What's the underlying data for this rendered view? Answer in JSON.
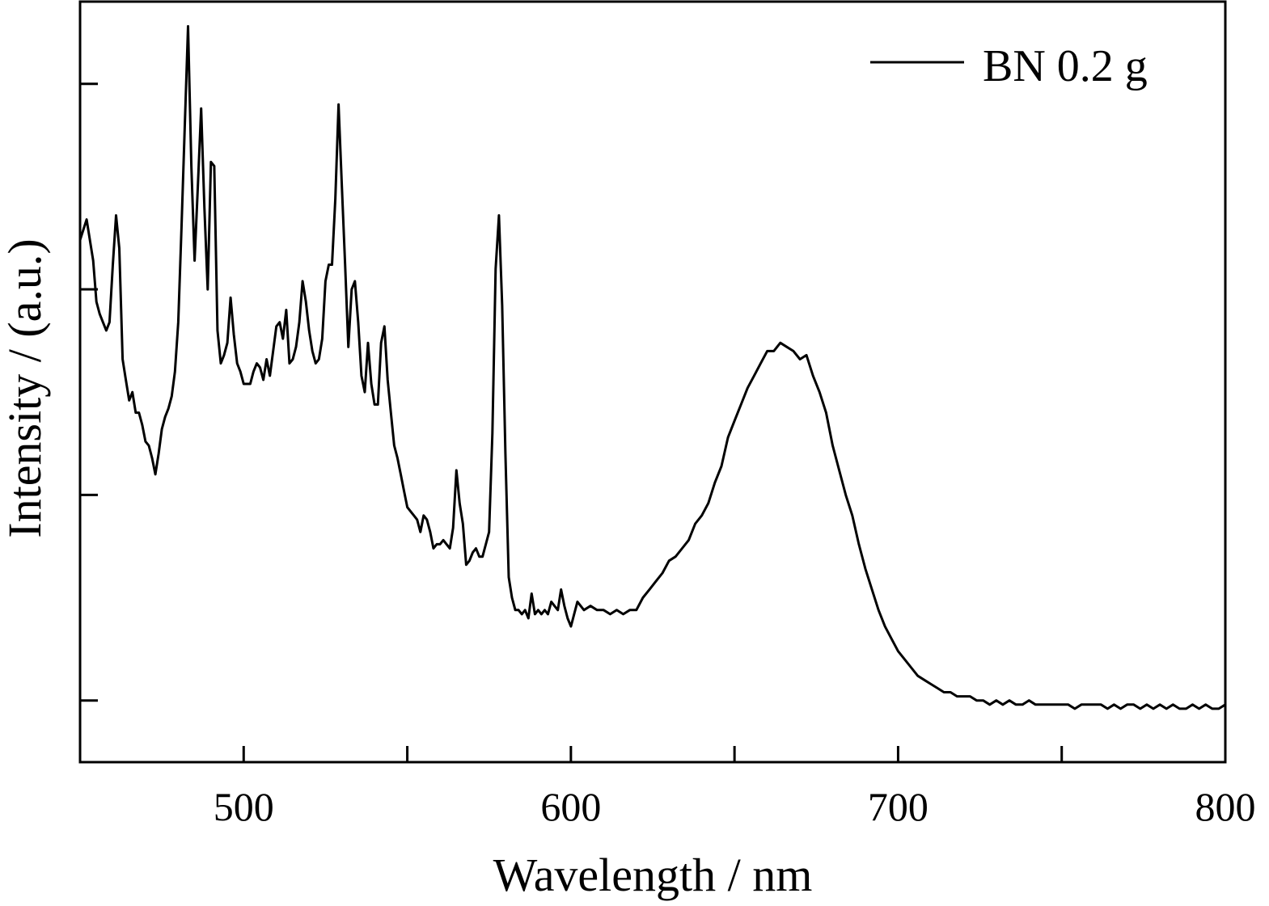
{
  "chart_data": {
    "type": "line",
    "title": "",
    "xlabel": "Wavelength / nm",
    "ylabel": "Intensity / (a.u.)",
    "xlim": [
      450,
      800
    ],
    "ylim": [
      -0.15,
      1.7
    ],
    "xticks": [
      500,
      600,
      700,
      800
    ],
    "xminor": [
      550,
      650,
      750
    ],
    "yticks_unlabeled": [
      0,
      0.5,
      1.0,
      1.5
    ],
    "legend_position": "top-right",
    "grid": false,
    "series": [
      {
        "name": "BN 0.2 g",
        "color": "#000000",
        "points": [
          [
            450,
            1.12
          ],
          [
            452,
            1.17
          ],
          [
            454,
            1.07
          ],
          [
            455,
            0.97
          ],
          [
            456,
            0.94
          ],
          [
            457,
            0.92
          ],
          [
            458,
            0.9
          ],
          [
            459,
            0.92
          ],
          [
            460,
            1.06
          ],
          [
            461,
            1.18
          ],
          [
            462,
            1.1
          ],
          [
            463,
            0.83
          ],
          [
            464,
            0.78
          ],
          [
            465,
            0.73
          ],
          [
            466,
            0.75
          ],
          [
            467,
            0.7
          ],
          [
            468,
            0.7
          ],
          [
            469,
            0.67
          ],
          [
            470,
            0.63
          ],
          [
            471,
            0.62
          ],
          [
            472,
            0.59
          ],
          [
            473,
            0.55
          ],
          [
            474,
            0.6
          ],
          [
            475,
            0.66
          ],
          [
            476,
            0.69
          ],
          [
            477,
            0.71
          ],
          [
            478,
            0.74
          ],
          [
            479,
            0.8
          ],
          [
            480,
            0.92
          ],
          [
            481,
            1.15
          ],
          [
            482,
            1.4
          ],
          [
            483,
            1.64
          ],
          [
            484,
            1.3
          ],
          [
            485,
            1.07
          ],
          [
            486,
            1.25
          ],
          [
            487,
            1.44
          ],
          [
            488,
            1.2
          ],
          [
            489,
            1.0
          ],
          [
            490,
            1.31
          ],
          [
            491,
            1.3
          ],
          [
            492,
            0.9
          ],
          [
            493,
            0.82
          ],
          [
            494,
            0.84
          ],
          [
            495,
            0.87
          ],
          [
            496,
            0.98
          ],
          [
            497,
            0.89
          ],
          [
            498,
            0.82
          ],
          [
            499,
            0.8
          ],
          [
            500,
            0.77
          ],
          [
            502,
            0.77
          ],
          [
            503,
            0.8
          ],
          [
            504,
            0.82
          ],
          [
            505,
            0.81
          ],
          [
            506,
            0.78
          ],
          [
            507,
            0.83
          ],
          [
            508,
            0.79
          ],
          [
            509,
            0.85
          ],
          [
            510,
            0.91
          ],
          [
            511,
            0.92
          ],
          [
            512,
            0.88
          ],
          [
            513,
            0.95
          ],
          [
            514,
            0.82
          ],
          [
            515,
            0.83
          ],
          [
            516,
            0.86
          ],
          [
            517,
            0.92
          ],
          [
            518,
            1.02
          ],
          [
            519,
            0.97
          ],
          [
            520,
            0.9
          ],
          [
            521,
            0.85
          ],
          [
            522,
            0.82
          ],
          [
            523,
            0.83
          ],
          [
            524,
            0.88
          ],
          [
            525,
            1.02
          ],
          [
            526,
            1.06
          ],
          [
            527,
            1.06
          ],
          [
            528,
            1.22
          ],
          [
            529,
            1.45
          ],
          [
            530,
            1.25
          ],
          [
            531,
            1.06
          ],
          [
            532,
            0.86
          ],
          [
            533,
            1.0
          ],
          [
            534,
            1.02
          ],
          [
            535,
            0.92
          ],
          [
            536,
            0.79
          ],
          [
            537,
            0.75
          ],
          [
            538,
            0.87
          ],
          [
            539,
            0.77
          ],
          [
            540,
            0.72
          ],
          [
            541,
            0.72
          ],
          [
            542,
            0.87
          ],
          [
            543,
            0.91
          ],
          [
            544,
            0.78
          ],
          [
            545,
            0.7
          ],
          [
            546,
            0.62
          ],
          [
            547,
            0.59
          ],
          [
            548,
            0.55
          ],
          [
            549,
            0.51
          ],
          [
            550,
            0.47
          ],
          [
            551,
            0.46
          ],
          [
            552,
            0.45
          ],
          [
            553,
            0.44
          ],
          [
            554,
            0.41
          ],
          [
            555,
            0.45
          ],
          [
            556,
            0.44
          ],
          [
            557,
            0.41
          ],
          [
            558,
            0.37
          ],
          [
            559,
            0.38
          ],
          [
            560,
            0.38
          ],
          [
            561,
            0.39
          ],
          [
            562,
            0.38
          ],
          [
            563,
            0.37
          ],
          [
            564,
            0.42
          ],
          [
            565,
            0.56
          ],
          [
            566,
            0.48
          ],
          [
            567,
            0.43
          ],
          [
            568,
            0.33
          ],
          [
            569,
            0.34
          ],
          [
            570,
            0.36
          ],
          [
            571,
            0.37
          ],
          [
            572,
            0.35
          ],
          [
            573,
            0.35
          ],
          [
            574,
            0.38
          ],
          [
            575,
            0.41
          ],
          [
            576,
            0.65
          ],
          [
            577,
            1.05
          ],
          [
            578,
            1.18
          ],
          [
            579,
            0.96
          ],
          [
            580,
            0.6
          ],
          [
            581,
            0.3
          ],
          [
            582,
            0.25
          ],
          [
            583,
            0.22
          ],
          [
            584,
            0.22
          ],
          [
            585,
            0.21
          ],
          [
            586,
            0.22
          ],
          [
            587,
            0.2
          ],
          [
            588,
            0.26
          ],
          [
            589,
            0.21
          ],
          [
            590,
            0.22
          ],
          [
            591,
            0.21
          ],
          [
            592,
            0.22
          ],
          [
            593,
            0.21
          ],
          [
            594,
            0.24
          ],
          [
            595,
            0.23
          ],
          [
            596,
            0.22
          ],
          [
            597,
            0.27
          ],
          [
            598,
            0.23
          ],
          [
            599,
            0.2
          ],
          [
            600,
            0.18
          ],
          [
            602,
            0.24
          ],
          [
            604,
            0.22
          ],
          [
            606,
            0.23
          ],
          [
            608,
            0.22
          ],
          [
            610,
            0.22
          ],
          [
            612,
            0.21
          ],
          [
            614,
            0.22
          ],
          [
            616,
            0.21
          ],
          [
            618,
            0.22
          ],
          [
            620,
            0.22
          ],
          [
            622,
            0.25
          ],
          [
            624,
            0.27
          ],
          [
            626,
            0.29
          ],
          [
            628,
            0.31
          ],
          [
            630,
            0.34
          ],
          [
            632,
            0.35
          ],
          [
            634,
            0.37
          ],
          [
            636,
            0.39
          ],
          [
            638,
            0.43
          ],
          [
            640,
            0.45
          ],
          [
            642,
            0.48
          ],
          [
            644,
            0.53
          ],
          [
            646,
            0.57
          ],
          [
            648,
            0.64
          ],
          [
            650,
            0.68
          ],
          [
            652,
            0.72
          ],
          [
            654,
            0.76
          ],
          [
            656,
            0.79
          ],
          [
            658,
            0.82
          ],
          [
            660,
            0.85
          ],
          [
            662,
            0.85
          ],
          [
            664,
            0.87
          ],
          [
            666,
            0.86
          ],
          [
            668,
            0.85
          ],
          [
            670,
            0.83
          ],
          [
            672,
            0.84
          ],
          [
            674,
            0.79
          ],
          [
            676,
            0.75
          ],
          [
            678,
            0.7
          ],
          [
            680,
            0.62
          ],
          [
            682,
            0.56
          ],
          [
            684,
            0.5
          ],
          [
            686,
            0.45
          ],
          [
            688,
            0.38
          ],
          [
            690,
            0.32
          ],
          [
            692,
            0.27
          ],
          [
            694,
            0.22
          ],
          [
            696,
            0.18
          ],
          [
            698,
            0.15
          ],
          [
            700,
            0.12
          ],
          [
            702,
            0.1
          ],
          [
            704,
            0.08
          ],
          [
            706,
            0.06
          ],
          [
            708,
            0.05
          ],
          [
            710,
            0.04
          ],
          [
            712,
            0.03
          ],
          [
            714,
            0.02
          ],
          [
            716,
            0.02
          ],
          [
            718,
            0.01
          ],
          [
            720,
            0.01
          ],
          [
            722,
            0.01
          ],
          [
            724,
            0.0
          ],
          [
            726,
            0.0
          ],
          [
            728,
            -0.01
          ],
          [
            730,
            0.0
          ],
          [
            732,
            -0.01
          ],
          [
            734,
            0.0
          ],
          [
            736,
            -0.01
          ],
          [
            738,
            -0.01
          ],
          [
            740,
            0.0
          ],
          [
            742,
            -0.01
          ],
          [
            744,
            -0.01
          ],
          [
            746,
            -0.01
          ],
          [
            748,
            -0.01
          ],
          [
            750,
            -0.01
          ],
          [
            752,
            -0.01
          ],
          [
            754,
            -0.02
          ],
          [
            756,
            -0.01
          ],
          [
            758,
            -0.01
          ],
          [
            760,
            -0.01
          ],
          [
            762,
            -0.01
          ],
          [
            764,
            -0.02
          ],
          [
            766,
            -0.01
          ],
          [
            768,
            -0.02
          ],
          [
            770,
            -0.01
          ],
          [
            772,
            -0.01
          ],
          [
            774,
            -0.02
          ],
          [
            776,
            -0.01
          ],
          [
            778,
            -0.02
          ],
          [
            780,
            -0.01
          ],
          [
            782,
            -0.02
          ],
          [
            784,
            -0.01
          ],
          [
            786,
            -0.02
          ],
          [
            788,
            -0.02
          ],
          [
            790,
            -0.01
          ],
          [
            792,
            -0.02
          ],
          [
            794,
            -0.01
          ],
          [
            796,
            -0.02
          ],
          [
            798,
            -0.02
          ],
          [
            800,
            -0.01
          ]
        ]
      }
    ]
  }
}
